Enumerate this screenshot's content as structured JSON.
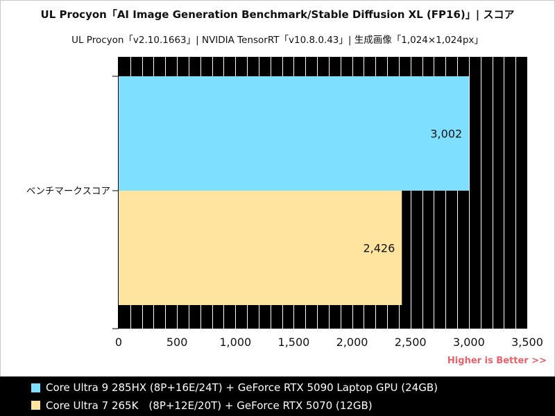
{
  "chart_data": {
    "type": "bar",
    "orientation": "horizontal",
    "title": "UL Procyon「AI Image Generation Benchmark/Stable Diffusion XL (FP16)」| スコア",
    "subtitle": "UL Procyon「v2.10.1663」| NVIDIA TensorRT「v10.8.0.43」| 生成画像「1,024×1,024px」",
    "categories": [
      "ベンチマークスコア"
    ],
    "series": [
      {
        "name": "Core Ultra 9 285HX (8P+16E/24T) + GeForce RTX 5090 Laptop GPU (24GB)",
        "values": [
          3002
        ],
        "labels": [
          "3,002"
        ],
        "color": "#7fdfff"
      },
      {
        "name": "Core Ultra 7 265K　(8P+12E/20T) + GeForce RTX 5070 (12GB)",
        "values": [
          2426
        ],
        "labels": [
          "2,426"
        ],
        "color": "#ffe4a0"
      }
    ],
    "xlim": [
      0,
      3500
    ],
    "xticks": [
      0,
      500,
      1000,
      1500,
      2000,
      2500,
      3000,
      3500
    ],
    "xtick_labels": [
      "0",
      "500",
      "1,000",
      "1,500",
      "2,000",
      "2,500",
      "3,000",
      "3,500"
    ],
    "minor_tick_step": 100,
    "grid": true,
    "plot_background": "#000000",
    "grid_color": "#ffffff",
    "legend_position": "bottom",
    "note": "Higher is Better >>",
    "note_color": "#e8616b"
  }
}
